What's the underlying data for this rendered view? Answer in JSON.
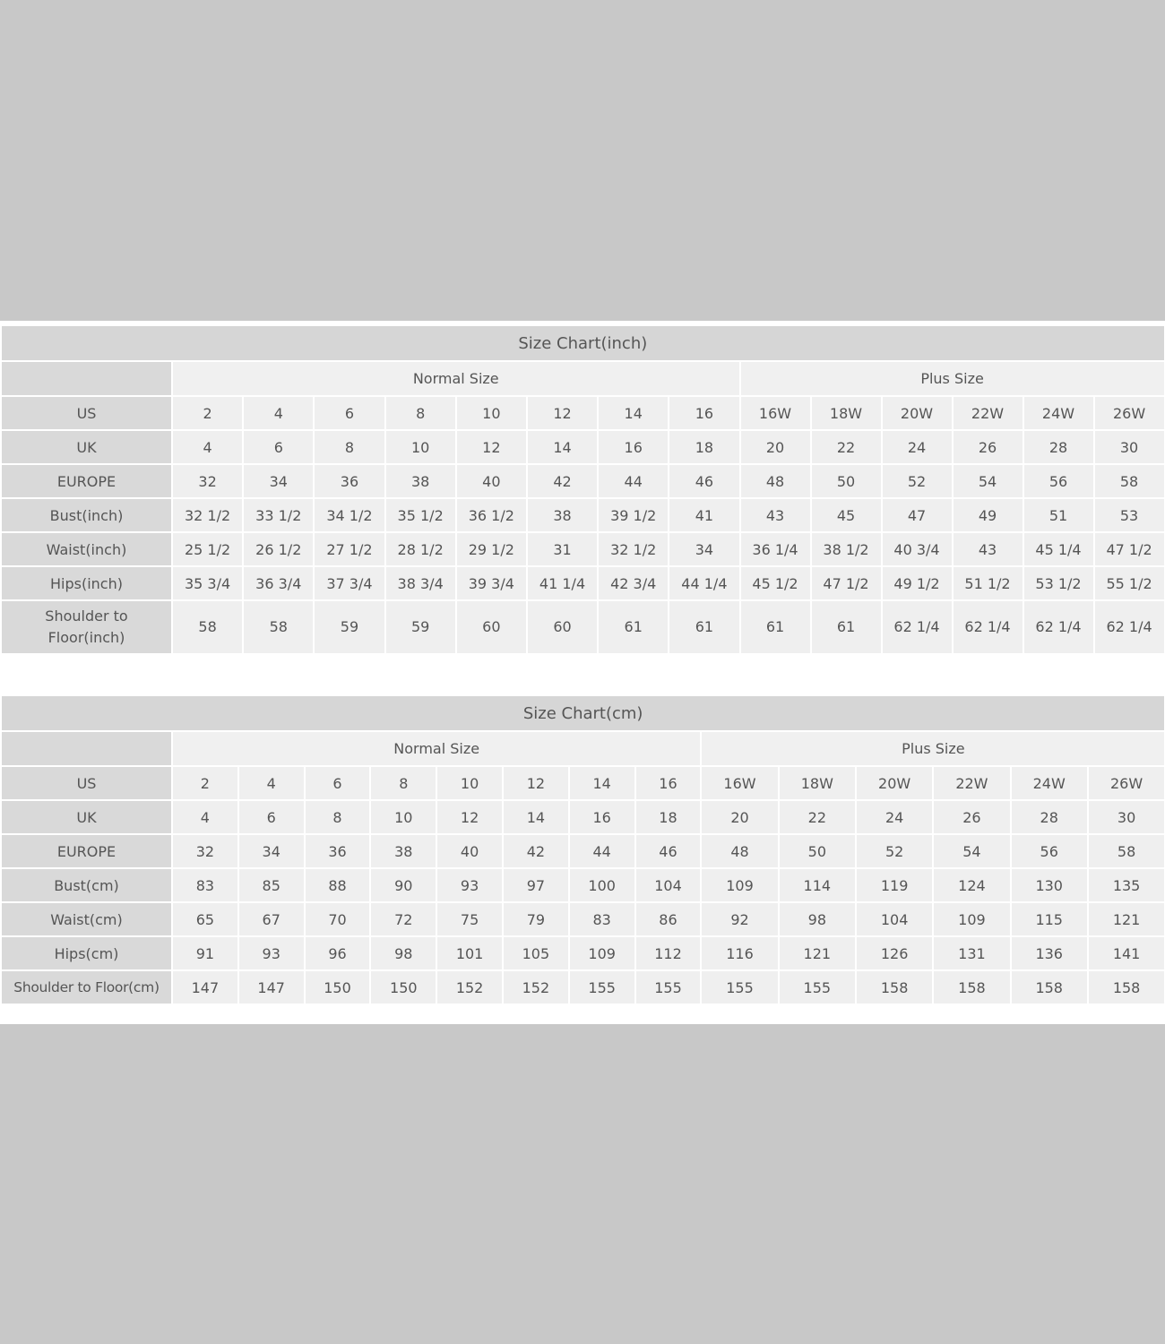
{
  "charts": [
    {
      "title": "Size Chart(inch)",
      "groups": [
        "Normal Size",
        "Plus Size"
      ],
      "rows": [
        {
          "label": "US",
          "values": [
            "2",
            "4",
            "6",
            "8",
            "10",
            "12",
            "14",
            "16",
            "16W",
            "18W",
            "20W",
            "22W",
            "24W",
            "26W"
          ]
        },
        {
          "label": "UK",
          "values": [
            "4",
            "6",
            "8",
            "10",
            "12",
            "14",
            "16",
            "18",
            "20",
            "22",
            "24",
            "26",
            "28",
            "30"
          ]
        },
        {
          "label": "EUROPE",
          "values": [
            "32",
            "34",
            "36",
            "38",
            "40",
            "42",
            "44",
            "46",
            "48",
            "50",
            "52",
            "54",
            "56",
            "58"
          ]
        },
        {
          "label": "Bust(inch)",
          "values": [
            "32 1/2",
            "33 1/2",
            "34 1/2",
            "35 1/2",
            "36 1/2",
            "38",
            "39 1/2",
            "41",
            "43",
            "45",
            "47",
            "49",
            "51",
            "53"
          ]
        },
        {
          "label": "Waist(inch)",
          "values": [
            "25 1/2",
            "26 1/2",
            "27 1/2",
            "28 1/2",
            "29 1/2",
            "31",
            "32 1/2",
            "34",
            "36 1/4",
            "38 1/2",
            "40 3/4",
            "43",
            "45 1/4",
            "47 1/2"
          ]
        },
        {
          "label": "Hips(inch)",
          "values": [
            "35 3/4",
            "36 3/4",
            "37 3/4",
            "38 3/4",
            "39 3/4",
            "41 1/4",
            "42 3/4",
            "44 1/4",
            "45 1/2",
            "47 1/2",
            "49 1/2",
            "51 1/2",
            "53 1/2",
            "55 1/2"
          ]
        },
        {
          "label": "Shoulder to Floor(inch)",
          "values": [
            "58",
            "58",
            "59",
            "59",
            "60",
            "60",
            "61",
            "61",
            "61",
            "61",
            "62 1/4",
            "62 1/4",
            "62 1/4",
            "62 1/4"
          ]
        }
      ]
    },
    {
      "title": "Size Chart(cm)",
      "groups": [
        "Normal Size",
        "Plus Size"
      ],
      "rows": [
        {
          "label": "US",
          "values": [
            "2",
            "4",
            "6",
            "8",
            "10",
            "12",
            "14",
            "16",
            "16W",
            "18W",
            "20W",
            "22W",
            "24W",
            "26W"
          ]
        },
        {
          "label": "UK",
          "values": [
            "4",
            "6",
            "8",
            "10",
            "12",
            "14",
            "16",
            "18",
            "20",
            "22",
            "24",
            "26",
            "28",
            "30"
          ]
        },
        {
          "label": "EUROPE",
          "values": [
            "32",
            "34",
            "36",
            "38",
            "40",
            "42",
            "44",
            "46",
            "48",
            "50",
            "52",
            "54",
            "56",
            "58"
          ]
        },
        {
          "label": "Bust(cm)",
          "values": [
            "83",
            "85",
            "88",
            "90",
            "93",
            "97",
            "100",
            "104",
            "109",
            "114",
            "119",
            "124",
            "130",
            "135"
          ]
        },
        {
          "label": "Waist(cm)",
          "values": [
            "65",
            "67",
            "70",
            "72",
            "75",
            "79",
            "83",
            "86",
            "92",
            "98",
            "104",
            "109",
            "115",
            "121"
          ]
        },
        {
          "label": "Hips(cm)",
          "values": [
            "91",
            "93",
            "96",
            "98",
            "101",
            "105",
            "109",
            "112",
            "116",
            "121",
            "126",
            "131",
            "136",
            "141"
          ]
        },
        {
          "label": "Shoulder to Floor(cm)",
          "values": [
            "147",
            "147",
            "150",
            "150",
            "152",
            "152",
            "155",
            "155",
            "155",
            "155",
            "158",
            "158",
            "158",
            "158"
          ]
        }
      ]
    }
  ]
}
